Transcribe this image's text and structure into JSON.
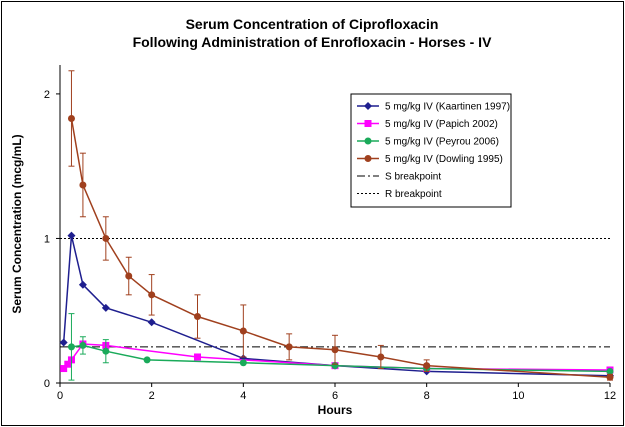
{
  "chart_data": {
    "type": "line",
    "title_line1": "Serum Concentration of Ciprofloxacin",
    "title_line2": "Following Administration of Enrofloxacin - Horses - IV",
    "xlabel": "Hours",
    "ylabel": "Serum Concentration (mcg/mL)",
    "xlim": [
      0,
      12
    ],
    "ylim": [
      0,
      2.2
    ],
    "xticks": [
      0,
      2,
      4,
      6,
      8,
      10,
      12
    ],
    "yticks": [
      0,
      1,
      2
    ],
    "grid": false,
    "legend_position": "top-right",
    "series": [
      {
        "name": "5 mg/kg IV (Kaartinen 1997)",
        "color": "#1f1f8f",
        "marker": "diamond",
        "x": [
          0.08,
          0.25,
          0.5,
          1,
          2,
          4,
          6,
          8,
          12
        ],
        "y": [
          0.28,
          1.02,
          0.68,
          0.52,
          0.42,
          0.17,
          0.12,
          0.08,
          0.05
        ]
      },
      {
        "name": "5 mg/kg IV (Papich 2002)",
        "color": "#ff00ff",
        "marker": "square",
        "x": [
          0.08,
          0.17,
          0.25,
          0.5,
          1,
          3,
          6,
          8,
          12
        ],
        "y": [
          0.1,
          0.13,
          0.16,
          0.27,
          0.26,
          0.18,
          0.12,
          0.1,
          0.09
        ]
      },
      {
        "name": "5 mg/kg IV (Peyrou 2006)",
        "color": "#1aaa5a",
        "marker": "circle",
        "x": [
          0.25,
          0.5,
          1,
          1.9,
          4,
          6,
          8,
          12
        ],
        "y": [
          0.25,
          0.26,
          0.22,
          0.16,
          0.14,
          0.12,
          0.1,
          0.08
        ],
        "errors": [
          0.23,
          0.06,
          0.08,
          0,
          0,
          0,
          0,
          0
        ]
      },
      {
        "name": "5 mg/kg IV (Dowling 1995)",
        "color": "#a0401e",
        "marker": "circle",
        "x": [
          0.25,
          0.5,
          1,
          1.5,
          2,
          3,
          4,
          5,
          6,
          7,
          8,
          12
        ],
        "y": [
          1.83,
          1.37,
          1.0,
          0.74,
          0.61,
          0.46,
          0.36,
          0.25,
          0.23,
          0.18,
          0.12,
          0.04
        ],
        "errors": [
          0.33,
          0.22,
          0.15,
          0.13,
          0.14,
          0.15,
          0.18,
          0.09,
          0.1,
          0.08,
          0.04,
          0.02
        ]
      }
    ],
    "reference_lines": [
      {
        "name": "S breakpoint",
        "y": 0.25,
        "style": "dashdot",
        "color": "#000000"
      },
      {
        "name": "R breakpoint",
        "y": 1.0,
        "style": "dotted",
        "color": "#000000"
      }
    ]
  }
}
